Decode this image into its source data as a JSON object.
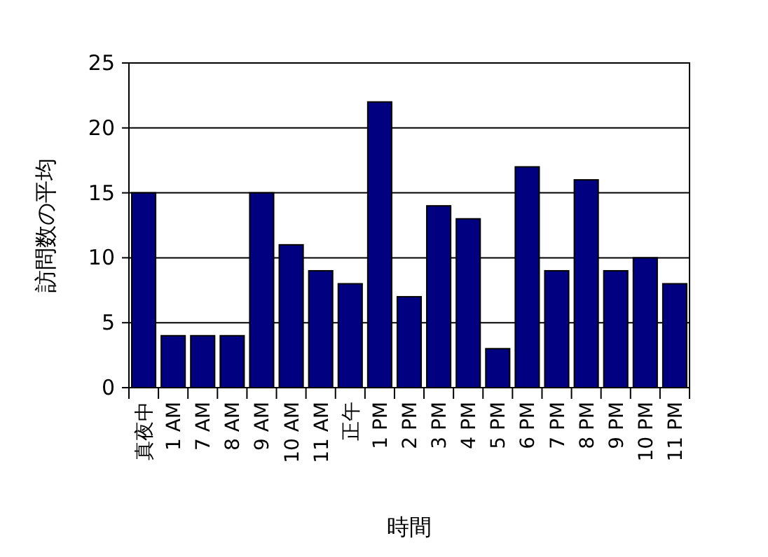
{
  "chart_data": {
    "type": "bar",
    "xlabel": "時間",
    "ylabel": "訪問数の平均",
    "categories": [
      "真夜中",
      "1 AM",
      "7 AM",
      "8 AM",
      "9 AM",
      "10 AM",
      "11 AM",
      "正午",
      "1 PM",
      "2 PM",
      "3 PM",
      "4 PM",
      "5 PM",
      "6 PM",
      "7 PM",
      "8 PM",
      "9 PM",
      "10 PM",
      "11 PM"
    ],
    "values": [
      15,
      4,
      4,
      4,
      15,
      11,
      9,
      8,
      22,
      7,
      14,
      13,
      3,
      17,
      9,
      16,
      9,
      10,
      8
    ],
    "color": "#000080",
    "ylim": [
      0,
      25
    ],
    "yticks": [
      0,
      5,
      10,
      15,
      20,
      25
    ],
    "grid": "y"
  }
}
